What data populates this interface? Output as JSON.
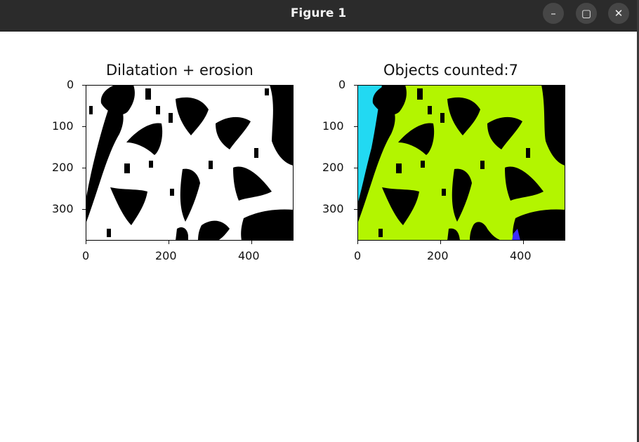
{
  "window": {
    "title": "Figure 1",
    "minimize_icon": "minimize-icon",
    "maximize_icon": "maximize-icon",
    "close_icon": "close-icon"
  },
  "plots": [
    {
      "title": "Dilatation + erosion",
      "x_ticks": [
        "0",
        "200",
        "400"
      ],
      "y_ticks": [
        "0",
        "100",
        "200",
        "300"
      ],
      "colors": {
        "background": "#ffffff",
        "objects": "#000000"
      }
    },
    {
      "title": "Objects counted:7",
      "x_ticks": [
        "0",
        "200",
        "400"
      ],
      "y_ticks": [
        "0",
        "100",
        "200",
        "300"
      ],
      "colors": {
        "background": "#000000",
        "region_main": "#b3f500",
        "region_left": "#22d9f2",
        "region_small": "#3a2cff"
      }
    }
  ]
}
